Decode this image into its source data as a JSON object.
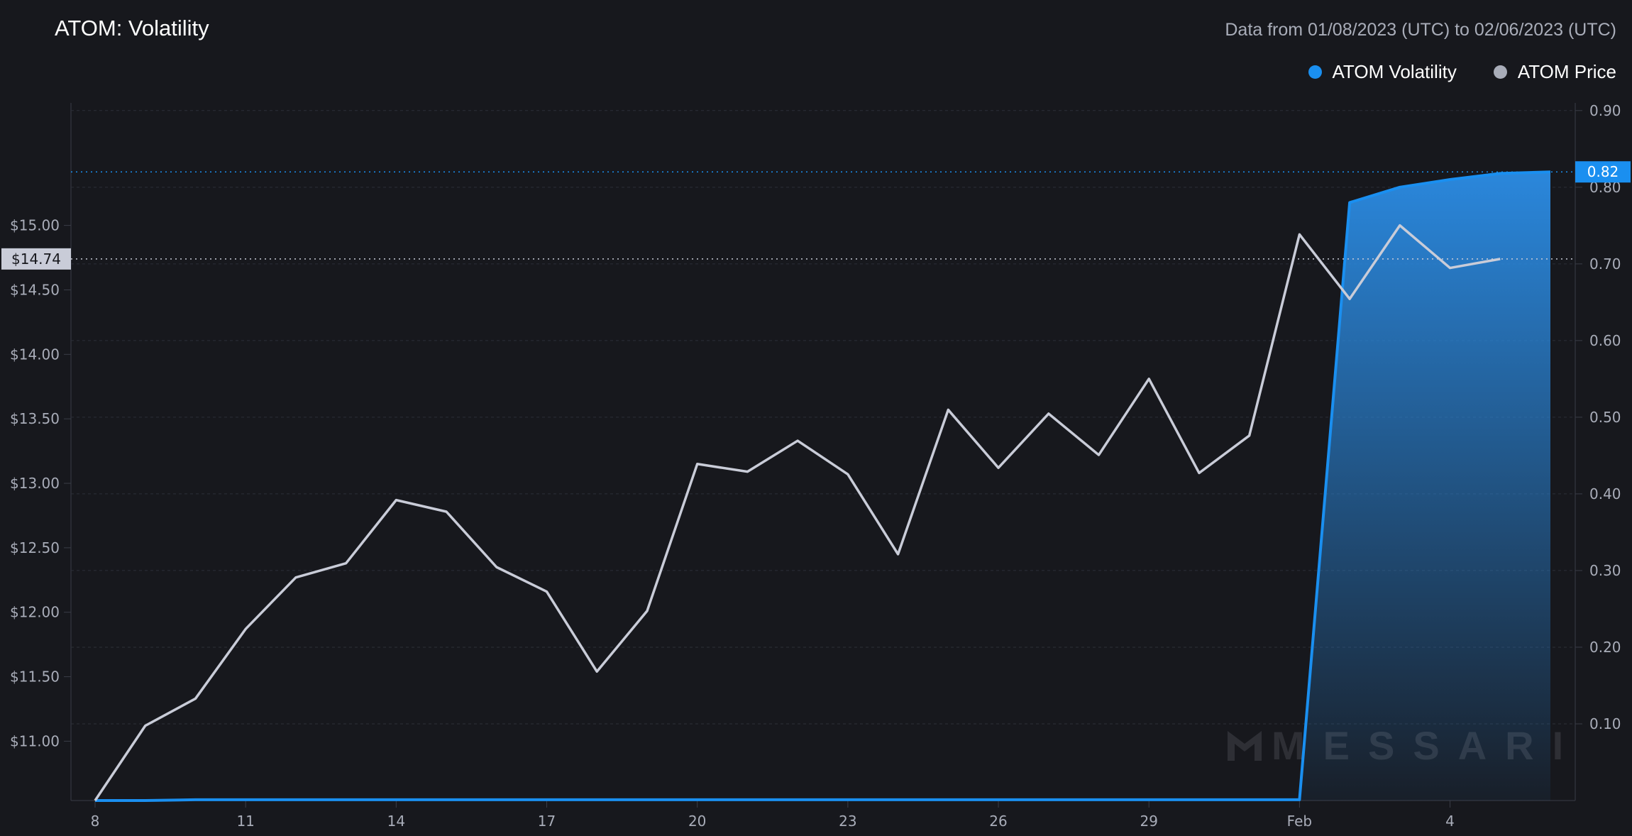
{
  "header": {
    "title": "ATOM: Volatility",
    "date_range": "Data from 01/08/2023 (UTC) to 02/06/2023 (UTC)"
  },
  "legend": [
    {
      "label": "ATOM Volatility",
      "color": "#1a8ff0"
    },
    {
      "label": "ATOM Price",
      "color": "#a9adb9"
    }
  ],
  "watermark": "MESSARI",
  "chart_data": {
    "type": "line",
    "x_ticks": [
      "8",
      "11",
      "14",
      "17",
      "20",
      "23",
      "26",
      "29",
      "Feb",
      "4"
    ],
    "x": [
      "Jan 8",
      "Jan 9",
      "Jan 10",
      "Jan 11",
      "Jan 12",
      "Jan 13",
      "Jan 14",
      "Jan 15",
      "Jan 16",
      "Jan 17",
      "Jan 18",
      "Jan 19",
      "Jan 20",
      "Jan 21",
      "Jan 22",
      "Jan 23",
      "Jan 24",
      "Jan 25",
      "Jan 26",
      "Jan 27",
      "Jan 28",
      "Jan 29",
      "Jan 30",
      "Jan 31",
      "Feb 1",
      "Feb 2",
      "Feb 3",
      "Feb 4",
      "Feb 5",
      "Feb 6"
    ],
    "left_axis": {
      "ticks": [
        "$11.00",
        "$11.50",
        "$12.00",
        "$12.50",
        "$13.00",
        "$13.50",
        "$14.00",
        "$14.50",
        "$15.00"
      ],
      "ylim": [
        10.54,
        15.95
      ]
    },
    "right_axis": {
      "ticks": [
        "0.10",
        "0.20",
        "0.30",
        "0.40",
        "0.50",
        "0.60",
        "0.70",
        "0.80",
        "0.90"
      ],
      "ylim": [
        0,
        0.91
      ]
    },
    "series": [
      {
        "name": "ATOM Price",
        "axis": "left",
        "color": "#c9ccd8",
        "values": [
          10.54,
          11.12,
          11.33,
          11.87,
          12.27,
          12.38,
          12.87,
          12.78,
          12.35,
          12.16,
          11.54,
          12.01,
          13.15,
          13.09,
          13.33,
          13.07,
          12.45,
          13.57,
          13.12,
          13.54,
          13.22,
          13.81,
          13.08,
          13.37,
          14.93,
          14.43,
          15.0,
          14.67,
          14.74,
          null
        ]
      },
      {
        "name": "ATOM Volatility",
        "axis": "right",
        "color": "#1a8ff0",
        "values": [
          0.0,
          0.0,
          0.001,
          0.001,
          0.001,
          0.001,
          0.001,
          0.001,
          0.001,
          0.001,
          0.001,
          0.001,
          0.001,
          0.001,
          0.001,
          0.001,
          0.001,
          0.001,
          0.001,
          0.001,
          0.001,
          0.001,
          0.001,
          0.001,
          0.001,
          0.78,
          0.8,
          0.81,
          0.818,
          0.82
        ]
      }
    ],
    "current_price_label": "$14.74",
    "current_volatility_label": "0.82",
    "grid": true
  }
}
